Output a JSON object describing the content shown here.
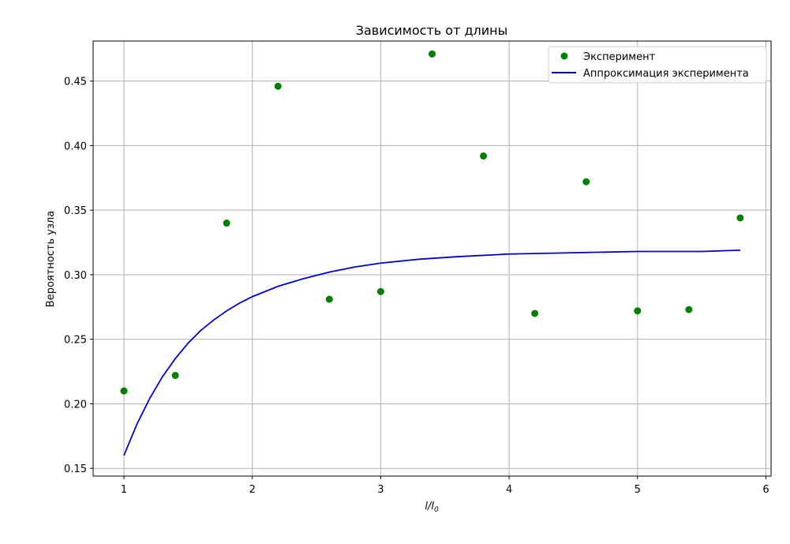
{
  "chart_data": {
    "type": "scatter",
    "title": "Зависимость от длины",
    "xlabel": "l/l",
    "xlabel_sub": "0",
    "ylabel": "Вероятность узла",
    "xlim": [
      0.76,
      6.04
    ],
    "ylim": [
      0.144,
      0.481
    ],
    "xticks": [
      1,
      2,
      3,
      4,
      5,
      6
    ],
    "yticks": [
      0.15,
      0.2,
      0.25,
      0.3,
      0.35,
      0.4,
      0.45
    ],
    "xtick_labels": [
      "1",
      "2",
      "3",
      "4",
      "5",
      "6"
    ],
    "ytick_labels": [
      "0.15",
      "0.20",
      "0.25",
      "0.30",
      "0.35",
      "0.40",
      "0.45"
    ],
    "grid": true,
    "legend_position": "top-right",
    "series": [
      {
        "name": "Эксперимент",
        "kind": "scatter",
        "color": "#008000",
        "x": [
          1.0,
          1.4,
          1.8,
          2.2,
          2.6,
          3.0,
          3.4,
          3.8,
          4.2,
          4.6,
          5.0,
          5.4,
          5.8
        ],
        "y": [
          0.21,
          0.222,
          0.34,
          0.446,
          0.281,
          0.287,
          0.471,
          0.392,
          0.27,
          0.372,
          0.272,
          0.273,
          0.344
        ]
      },
      {
        "name": "Аппроксимация эксперимента",
        "kind": "line",
        "color": "#0000cd",
        "x": [
          1.0,
          1.1,
          1.2,
          1.3,
          1.4,
          1.5,
          1.6,
          1.7,
          1.8,
          1.9,
          2.0,
          2.2,
          2.4,
          2.6,
          2.8,
          3.0,
          3.3,
          3.6,
          4.0,
          4.5,
          5.0,
          5.5,
          5.8
        ],
        "y": [
          0.16,
          0.184,
          0.204,
          0.221,
          0.235,
          0.247,
          0.257,
          0.265,
          0.272,
          0.278,
          0.283,
          0.291,
          0.297,
          0.302,
          0.306,
          0.309,
          0.312,
          0.314,
          0.316,
          0.317,
          0.318,
          0.318,
          0.319
        ]
      }
    ]
  }
}
